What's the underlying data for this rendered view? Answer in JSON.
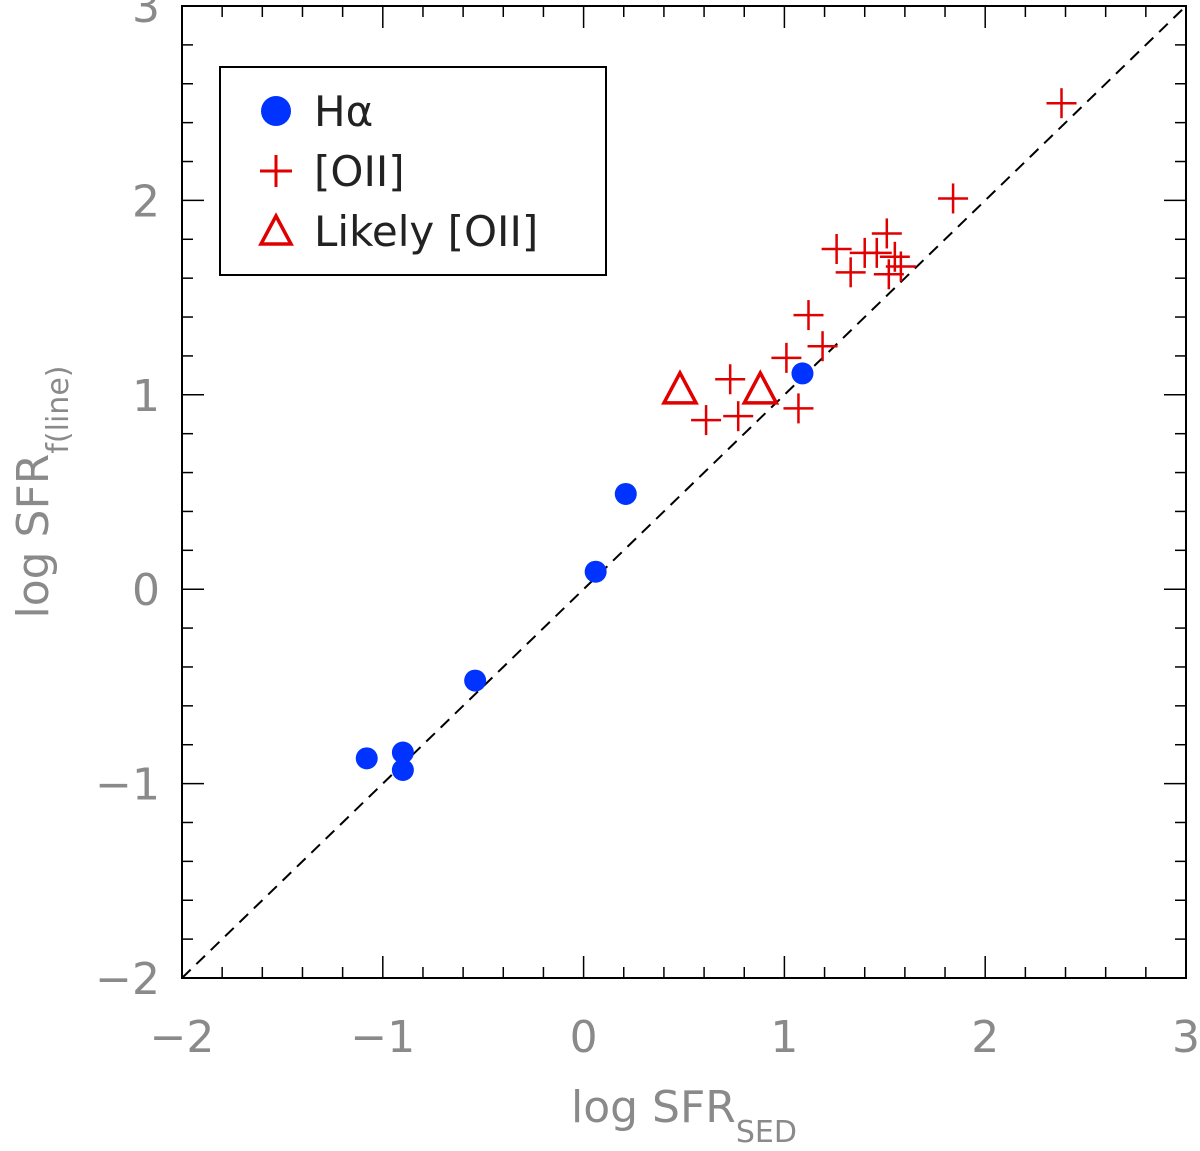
{
  "chart_data": {
    "type": "scatter",
    "xlabel": "log SFR",
    "xlabel_sub": "SED",
    "ylabel": "log SFR",
    "ylabel_sub": "f(line)",
    "xlim": [
      -2,
      3
    ],
    "ylim": [
      -2,
      3
    ],
    "xticks": [
      -2,
      -1,
      0,
      1,
      2,
      3
    ],
    "xtick_labels": [
      "−2",
      "−1",
      "0",
      "1",
      "2",
      "3"
    ],
    "yticks": [
      -2,
      -1,
      0,
      1,
      2,
      3
    ],
    "ytick_labels": [
      "−2",
      "−1",
      "0",
      "1",
      "2",
      "3"
    ],
    "reference_line": {
      "style": "dashed",
      "color": "#000000",
      "points": [
        [
          -2,
          -2
        ],
        [
          3,
          3
        ]
      ]
    },
    "legend": {
      "placement": "top-left",
      "entries": [
        {
          "label": "Hα",
          "marker": "filled-circle",
          "color": "#0033ff"
        },
        {
          "label": "[OII]",
          "marker": "plus",
          "color": "#e00000"
        },
        {
          "label": "Likely [OII]",
          "marker": "open-triangle",
          "color": "#e00000"
        }
      ]
    },
    "series": [
      {
        "name": "Hα",
        "marker": "filled-circle",
        "color": "#0033ff",
        "points": [
          {
            "x": -1.08,
            "y": -0.87
          },
          {
            "x": -0.9,
            "y": -0.84
          },
          {
            "x": -0.9,
            "y": -0.93
          },
          {
            "x": -0.54,
            "y": -0.47
          },
          {
            "x": 0.06,
            "y": 0.09
          },
          {
            "x": 0.21,
            "y": 0.49
          },
          {
            "x": 1.09,
            "y": 1.11
          }
        ]
      },
      {
        "name": "[OII]",
        "marker": "plus",
        "color": "#e00000",
        "points": [
          {
            "x": 0.61,
            "y": 0.87
          },
          {
            "x": 0.73,
            "y": 1.08
          },
          {
            "x": 0.77,
            "y": 0.89
          },
          {
            "x": 1.01,
            "y": 1.19
          },
          {
            "x": 1.07,
            "y": 0.93
          },
          {
            "x": 1.12,
            "y": 1.41
          },
          {
            "x": 1.19,
            "y": 1.25
          },
          {
            "x": 1.26,
            "y": 1.75
          },
          {
            "x": 1.33,
            "y": 1.63
          },
          {
            "x": 1.4,
            "y": 1.73
          },
          {
            "x": 1.46,
            "y": 1.73
          },
          {
            "x": 1.51,
            "y": 1.83
          },
          {
            "x": 1.52,
            "y": 1.62
          },
          {
            "x": 1.55,
            "y": 1.71
          },
          {
            "x": 1.58,
            "y": 1.66
          },
          {
            "x": 1.84,
            "y": 2.01
          },
          {
            "x": 2.38,
            "y": 2.5
          }
        ]
      },
      {
        "name": "Likely [OII]",
        "marker": "open-triangle",
        "color": "#e00000",
        "points": [
          {
            "x": 0.48,
            "y": 1.02
          },
          {
            "x": 0.88,
            "y": 1.02
          }
        ]
      }
    ]
  }
}
